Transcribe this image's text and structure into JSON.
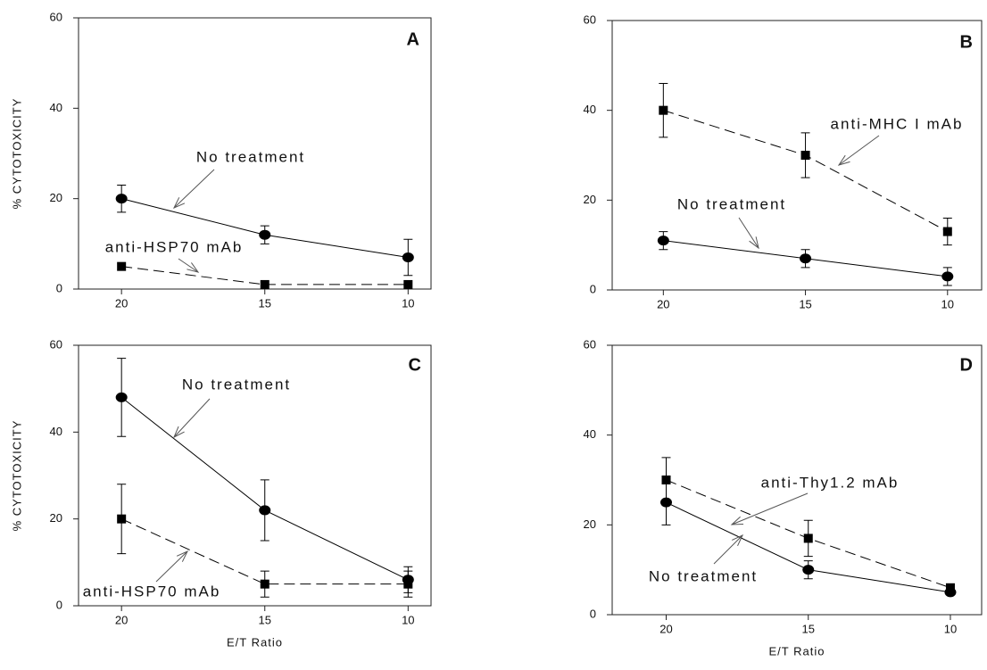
{
  "chart_data": [
    {
      "type": "line",
      "panel": "A",
      "ylabel": "% CYTOTOXICITY",
      "x": [
        20,
        15,
        10
      ],
      "xlim": [
        21.5,
        9.2
      ],
      "xticks": [
        20,
        15,
        10
      ],
      "ylim": [
        0,
        60
      ],
      "yticks": [
        0,
        20,
        40,
        60
      ],
      "series": [
        {
          "name": "No treatment",
          "color": "#000000",
          "marker": "circle",
          "dashed": false,
          "values": [
            20,
            12,
            7
          ],
          "errors": [
            3,
            2,
            4
          ]
        },
        {
          "name": "anti-HSP70 mAb",
          "color": "#000000",
          "marker": "square",
          "dashed": true,
          "values": [
            5,
            1,
            1
          ],
          "errors": [
            null,
            null,
            null
          ]
        }
      ]
    },
    {
      "type": "line",
      "panel": "B",
      "x": [
        20,
        15,
        10
      ],
      "xlim": [
        21.8,
        8.8
      ],
      "xticks": [
        20,
        15,
        10
      ],
      "ylim": [
        0,
        60
      ],
      "yticks": [
        0,
        20,
        40,
        60
      ],
      "series": [
        {
          "name": "anti-MHC I mAb",
          "color": "#000000",
          "marker": "square",
          "dashed": true,
          "values": [
            40,
            30,
            13
          ],
          "errors": [
            6,
            5,
            3
          ]
        },
        {
          "name": "No treatment",
          "color": "#000000",
          "marker": "circle",
          "dashed": false,
          "values": [
            11,
            7,
            3
          ],
          "errors": [
            2,
            2,
            2
          ]
        }
      ]
    },
    {
      "type": "line",
      "panel": "C",
      "ylabel": "% CYTOTOXICITY",
      "xlabel": "E/T Ratio",
      "x": [
        20,
        15,
        10
      ],
      "xlim": [
        21.5,
        9.2
      ],
      "xticks": [
        20,
        15,
        10
      ],
      "ylim": [
        0,
        60
      ],
      "yticks": [
        0,
        20,
        40,
        60
      ],
      "series": [
        {
          "name": "No treatment",
          "color": "#000000",
          "marker": "circle",
          "dashed": false,
          "values": [
            48,
            22,
            6
          ],
          "errors": [
            9,
            7,
            3
          ]
        },
        {
          "name": "anti-HSP70 mAb",
          "color": "#000000",
          "marker": "square",
          "dashed": true,
          "values": [
            20,
            5,
            5
          ],
          "errors": [
            8,
            3,
            3
          ]
        }
      ]
    },
    {
      "type": "line",
      "panel": "D",
      "xlabel": "E/T Ratio",
      "x": [
        20,
        15,
        10
      ],
      "xlim": [
        21.9,
        8.9
      ],
      "xticks": [
        20,
        15,
        10
      ],
      "ylim": [
        0,
        60
      ],
      "yticks": [
        0,
        20,
        40,
        60
      ],
      "series": [
        {
          "name": "anti-Thy1.2 mAb",
          "color": "#000000",
          "marker": "square",
          "dashed": true,
          "values": [
            30,
            17,
            6
          ],
          "errors": [
            5,
            4,
            null
          ]
        },
        {
          "name": "No treatment",
          "color": "#000000",
          "marker": "circle",
          "dashed": false,
          "values": [
            25,
            10,
            5
          ],
          "errors": [
            5,
            2,
            null
          ]
        }
      ]
    }
  ]
}
